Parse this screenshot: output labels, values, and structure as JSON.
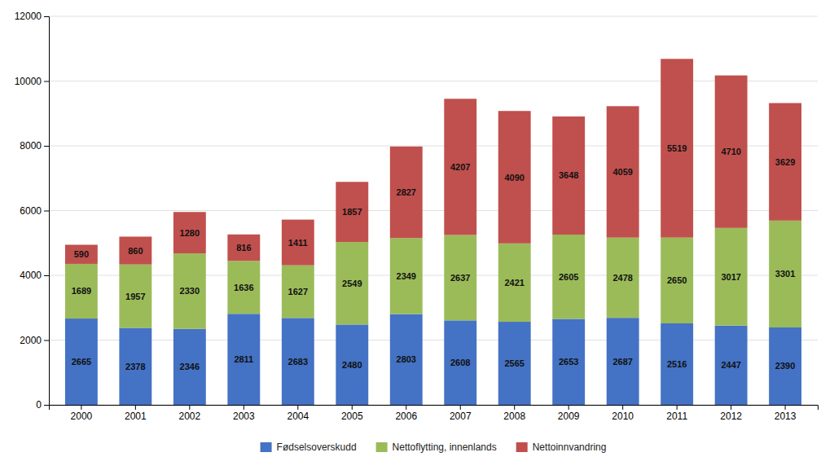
{
  "chart_data": {
    "type": "bar",
    "stacked": true,
    "categories": [
      "2000",
      "2001",
      "2002",
      "2003",
      "2004",
      "2005",
      "2006",
      "2007",
      "2008",
      "2009",
      "2010",
      "2011",
      "2012",
      "2013"
    ],
    "series": [
      {
        "name": "Fødselsoverskudd",
        "color": "#4472C4",
        "values": [
          2665,
          2378,
          2346,
          2811,
          2683,
          2480,
          2803,
          2608,
          2565,
          2653,
          2687,
          2516,
          2447,
          2390
        ]
      },
      {
        "name": "Nettoflytting, innenlands",
        "color": "#9BBB59",
        "values": [
          1689,
          1957,
          2330,
          1636,
          1627,
          2549,
          2349,
          2637,
          2421,
          2605,
          2478,
          2650,
          3017,
          3301
        ]
      },
      {
        "name": "Nettoinnvandring",
        "color": "#C0504D",
        "values": [
          590,
          860,
          1280,
          816,
          1411,
          1857,
          2827,
          4207,
          4090,
          3648,
          4059,
          5519,
          4710,
          3629
        ]
      }
    ],
    "ylim": [
      0,
      12000
    ],
    "yticks": [
      0,
      2000,
      4000,
      6000,
      8000,
      10000,
      12000
    ],
    "grid": true,
    "data_labels": true,
    "legend": "bottom"
  }
}
